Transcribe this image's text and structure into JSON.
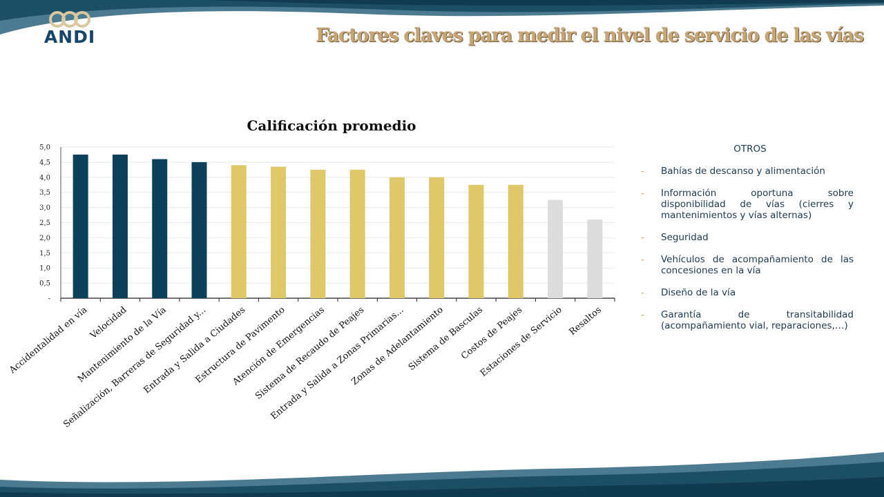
{
  "header": {
    "logo_text": "ANDI",
    "title": "Factores claves para medir el nivel de servicio de las vías"
  },
  "colors": {
    "primary": "#0d4159",
    "secondary": "#dfc86a",
    "tertiary": "#dcdcdc",
    "wave": "#1c4f66"
  },
  "chart_data": {
    "type": "bar",
    "title": "Calificación promedio",
    "xlabel": "",
    "ylabel": "",
    "ylim": [
      0,
      5
    ],
    "yticks": [
      "-",
      "0,5",
      "1,0",
      "1,5",
      "2,0",
      "2,5",
      "3,0",
      "3,5",
      "4,0",
      "4,5",
      "5,0"
    ],
    "grid": true,
    "legend": "none",
    "categories": [
      "Accidentalidad en vía",
      "Velocidad",
      "Mantenimiento de la Vía",
      "Señalización, Barreras de Seguridad y...",
      "Entrada y Salida a Ciudades",
      "Estructura de Pavimento",
      "Atención de Emergencias",
      "Sistema de Recaudo de Peajes",
      "Entrada y Salida a Zonas Primarias...",
      "Zonas de Adelantamiento",
      "Sistema de Basculas",
      "Costos de Peajes",
      "Estaciones de Servicio",
      "Resaltos"
    ],
    "values": [
      4.75,
      4.75,
      4.6,
      4.5,
      4.4,
      4.35,
      4.25,
      4.25,
      4.0,
      4.0,
      3.75,
      3.75,
      3.25,
      2.6
    ],
    "bar_colors": [
      "primary",
      "primary",
      "primary",
      "primary",
      "secondary",
      "secondary",
      "secondary",
      "secondary",
      "secondary",
      "secondary",
      "secondary",
      "secondary",
      "tertiary",
      "tertiary"
    ]
  },
  "otros": {
    "heading": "OTROS",
    "bullet": "-",
    "items": [
      "Bahías de descanso y alimentación",
      "Información oportuna sobre disponibilidad de vías (cierres y mantenimientos y vías alternas)",
      "Seguridad",
      "Vehículos de acompañamiento de las concesiones en la vía",
      "Diseño de la vía",
      "Garantía de transitabilidad (acompañamiento vial, reparaciones,…)"
    ]
  }
}
